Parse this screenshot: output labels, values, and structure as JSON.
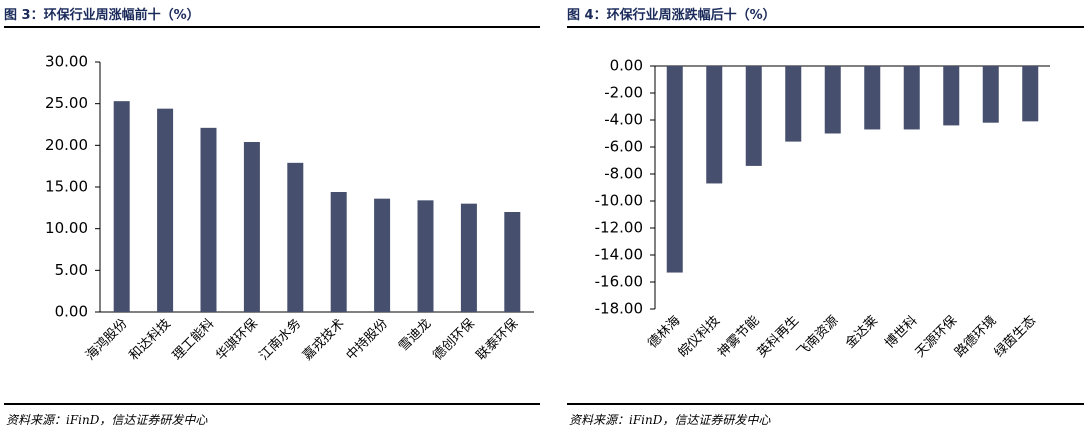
{
  "chart_data": [
    {
      "type": "bar",
      "title": "图 3：环保行业周涨幅前十（%）",
      "source": "资料来源：iFinD，信达证券研发中心",
      "categories": [
        "海鸿股份",
        "和达科技",
        "理工能科",
        "华骐环保",
        "江南水务",
        "嘉戎技术",
        "中持股份",
        "雪迪龙",
        "德创环保",
        "联泰环保"
      ],
      "values": [
        25.3,
        24.4,
        22.1,
        20.4,
        17.9,
        14.4,
        13.6,
        13.4,
        13.0,
        12.0
      ],
      "color": "#474f6e",
      "ylim": [
        0,
        30
      ],
      "yticks": [
        {
          "value": 0,
          "label": "0.00"
        },
        {
          "value": 5,
          "label": "5.00"
        },
        {
          "value": 10,
          "label": "10.00"
        },
        {
          "value": 15,
          "label": "15.00"
        },
        {
          "value": 20,
          "label": "20.00"
        },
        {
          "value": 25,
          "label": "25.00"
        },
        {
          "value": 30,
          "label": "30.00"
        }
      ]
    },
    {
      "type": "bar",
      "title": "图 4：环保行业周涨跌幅后十（%）",
      "source": "资料来源：iFinD，信达证券研发中心",
      "categories": [
        "德林海",
        "皖仪科技",
        "神雾节能",
        "英科再生",
        "飞南资源",
        "金达莱",
        "博世科",
        "天源环保",
        "路德环境",
        "绿茵生态"
      ],
      "values": [
        -15.3,
        -8.7,
        -7.4,
        -5.6,
        -5.0,
        -4.7,
        -4.7,
        -4.4,
        -4.2,
        -4.1
      ],
      "color": "#474f6e",
      "ylim": [
        -18,
        0
      ],
      "yticks": [
        {
          "value": 0,
          "label": "0.00"
        },
        {
          "value": -2,
          "label": "-2.00"
        },
        {
          "value": -4,
          "label": "-4.00"
        },
        {
          "value": -6,
          "label": "-6.00"
        },
        {
          "value": -8,
          "label": "-8.00"
        },
        {
          "value": -10,
          "label": "-10.00"
        },
        {
          "value": -12,
          "label": "-12.00"
        },
        {
          "value": -14,
          "label": "-14.00"
        },
        {
          "value": -16,
          "label": "-16.00"
        },
        {
          "value": -18,
          "label": "-18.00"
        }
      ]
    }
  ]
}
